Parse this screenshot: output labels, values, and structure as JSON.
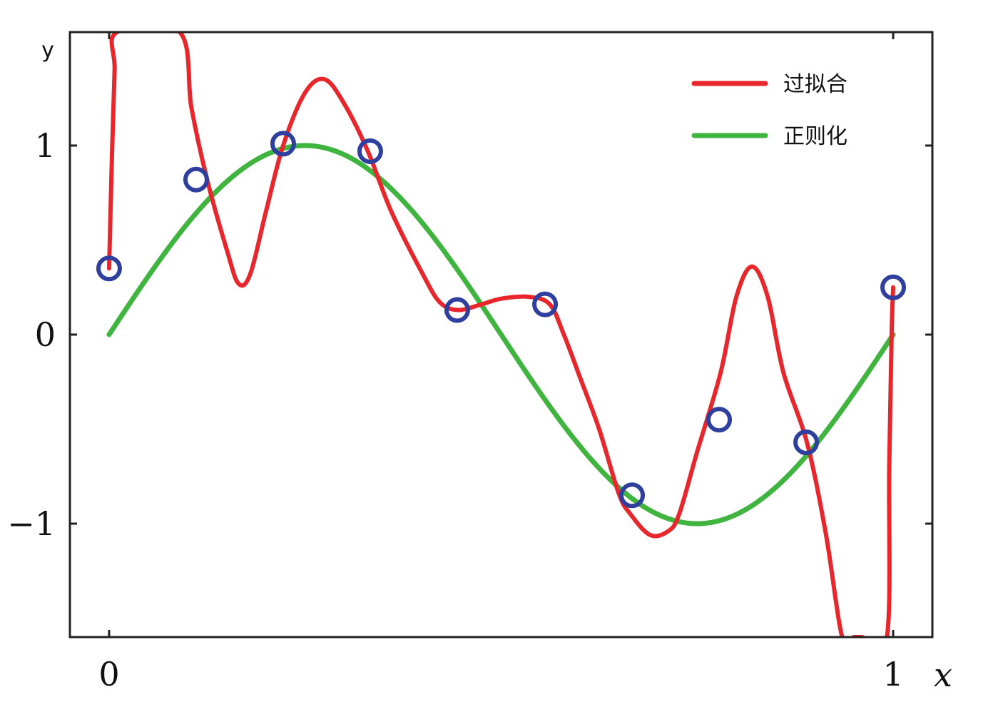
{
  "chart_data": {
    "type": "line",
    "xlabel": "x",
    "ylabel": "y",
    "xlim": [
      -0.05,
      1.05
    ],
    "ylim": [
      -1.6,
      1.6
    ],
    "x_ticks": [
      0,
      1
    ],
    "x_tick_labels": [
      "0",
      "1"
    ],
    "y_ticks": [
      -1,
      0,
      1
    ],
    "y_tick_labels": [
      "−1",
      "0",
      "1"
    ],
    "grid": false,
    "legend_position": "top-right",
    "colors": {
      "overfit": "#e8262b",
      "regularized": "#3fb43f",
      "points": "#2e3f9e",
      "axes": "#222222"
    },
    "series": [
      {
        "name": "过拟合",
        "kind": "line",
        "x": [
          0.0,
          0.004,
          0.007,
          0.01,
          0.09,
          0.105,
          0.125,
          0.15,
          0.165,
          0.18,
          0.2,
          0.222,
          0.25,
          0.275,
          0.3,
          0.33,
          0.36,
          0.4,
          0.422,
          0.445,
          0.475,
          0.5,
          0.535,
          0.562,
          0.58,
          0.6,
          0.625,
          0.65,
          0.665,
          0.69,
          0.713,
          0.727,
          0.75,
          0.78,
          0.8,
          0.82,
          0.84,
          0.86,
          0.89,
          0.914,
          0.935,
          0.95,
          0.96,
          0.992,
          0.995,
          0.998,
          1.0
        ],
        "y": [
          0.35,
          1.0,
          1.4,
          1.6,
          1.6,
          1.2,
          0.82,
          0.45,
          0.27,
          0.32,
          0.65,
          1.0,
          1.28,
          1.35,
          1.22,
          0.97,
          0.65,
          0.32,
          0.17,
          0.13,
          0.16,
          0.19,
          0.2,
          0.16,
          0.0,
          -0.22,
          -0.5,
          -0.84,
          -0.95,
          -1.06,
          -1.04,
          -0.95,
          -0.62,
          -0.2,
          0.2,
          0.36,
          0.2,
          -0.2,
          -0.57,
          -1.05,
          -1.6,
          -1.6,
          -1.6,
          -1.6,
          -0.7,
          0.0,
          0.25
        ]
      },
      {
        "name": "正则化",
        "kind": "line",
        "function": "sin(2*pi*x)",
        "samples": 200
      },
      {
        "name": "points",
        "kind": "scatter",
        "x": [
          0.0,
          0.111,
          0.222,
          0.333,
          0.444,
          0.556,
          0.667,
          0.778,
          0.889,
          1.0
        ],
        "y": [
          0.35,
          0.82,
          1.01,
          0.97,
          0.13,
          0.16,
          -0.85,
          -0.45,
          -0.57,
          0.25
        ]
      }
    ]
  }
}
